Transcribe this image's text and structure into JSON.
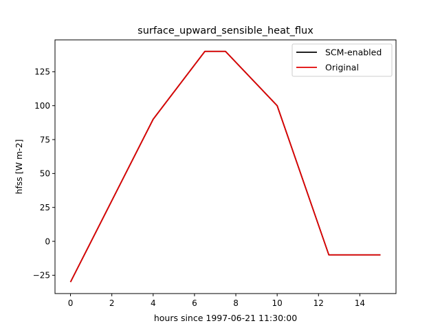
{
  "chart_data": {
    "type": "line",
    "title": "surface_upward_sensible_heat_flux",
    "xlabel": "hours since 1997-06-21 11:30:00",
    "ylabel": "hfss [W m-2]",
    "xlim": [
      -0.75,
      15.75
    ],
    "ylim": [
      -38.5,
      148.5
    ],
    "xticks": [
      0,
      2,
      4,
      6,
      8,
      10,
      12,
      14
    ],
    "yticks": [
      -25,
      0,
      25,
      50,
      75,
      100,
      125
    ],
    "grid": false,
    "legend_position": "top-right",
    "series": [
      {
        "name": "SCM-enabled",
        "color": "#000000",
        "x": [
          0,
          4,
          6.5,
          7.5,
          10,
          12.5,
          15
        ],
        "y": [
          -30,
          90,
          140,
          140,
          100,
          -10,
          -10
        ]
      },
      {
        "name": "Original",
        "color": "#e00000",
        "x": [
          0,
          4,
          6.5,
          7.5,
          10,
          12.5,
          15
        ],
        "y": [
          -30,
          90,
          140,
          140,
          100,
          -10,
          -10
        ]
      }
    ]
  }
}
